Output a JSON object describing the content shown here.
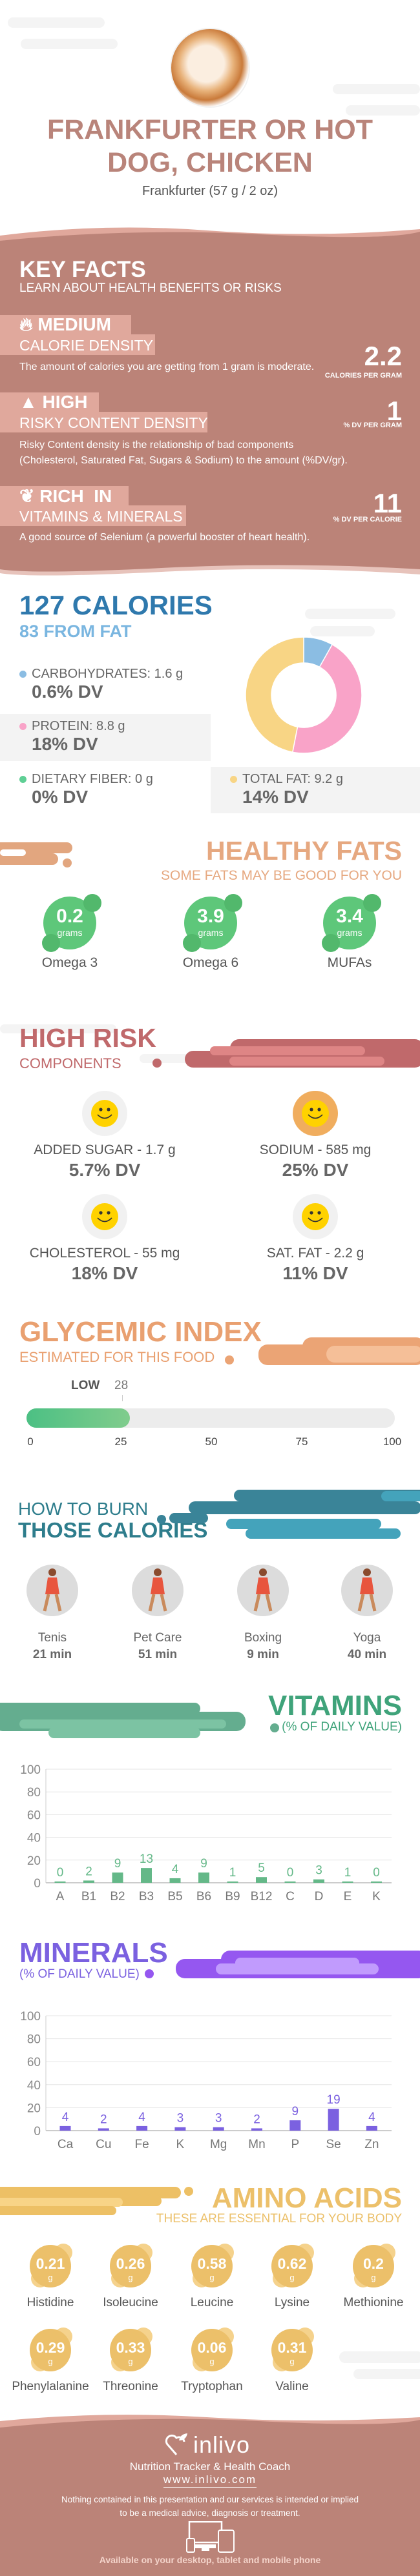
{
  "header": {
    "title_line1": "FRANKFURTER OR HOT",
    "title_line2": "DOG, CHICKEN",
    "serving": "Frankfurter (57 g / 2 oz)"
  },
  "key_facts": {
    "title": "KEY FACTS",
    "subtitle": "LEARN ABOUT HEALTH BENEFITS OR RISKS",
    "items": [
      {
        "level": "MEDIUM",
        "label": "CALORIE DENSITY",
        "value": "2.2",
        "unit": "CALORIES PER GRAM",
        "desc": [
          "The amount of calories you are getting from 1 gram is moderate."
        ],
        "icon": "flame-icon"
      },
      {
        "level": "HIGH",
        "label": "RISKY CONTENT DENSITY",
        "value": "1",
        "unit": "% DV PER GRAM",
        "desc": [
          "Risky Content density is the relationship of bad components",
          "(Cholesterol, Saturated Fat, Sugars & Sodium) to the amount (%DV/gr)."
        ],
        "icon": "warning-icon"
      },
      {
        "level": "RICH  IN",
        "label": "VITAMINS & MINERALS",
        "value": "11",
        "unit": "% DV PER CALORIE",
        "desc": [
          "A good source of Selenium (a powerful booster of heart health)."
        ],
        "icon": "leaf-icon"
      }
    ]
  },
  "calories": {
    "title": "127 CALORIES",
    "from_fat": "83 FROM FAT",
    "nutrients": [
      {
        "label": "CARBOHYDRATES: 1.6 g",
        "dv": "0.6% DV",
        "grams": 1.6,
        "color": "#8bbde3"
      },
      {
        "label": "PROTEIN: 8.8 g",
        "dv": "18% DV",
        "grams": 8.8,
        "color": "#f9a3c8"
      },
      {
        "label": "DIETARY FIBER: 0 g",
        "dv": "0% DV",
        "grams": 0,
        "color": "#5fcf95"
      },
      {
        "label": "TOTAL FAT: 9.2 g",
        "dv": "14% DV",
        "grams": 9.2,
        "color": "#f8d585"
      }
    ]
  },
  "healthy_fats": {
    "title": "HEALTHY FATS",
    "subtitle": "SOME FATS MAY BE GOOD FOR YOU",
    "items": [
      {
        "value": "0.2",
        "unit": "grams",
        "label": "Omega 3"
      },
      {
        "value": "3.9",
        "unit": "grams",
        "label": "Omega 6"
      },
      {
        "value": "3.4",
        "unit": "grams",
        "label": "MUFAs"
      }
    ]
  },
  "high_risk": {
    "title": "HIGH RISK",
    "subtitle": "COMPONENTS",
    "items": [
      {
        "label": "ADDED SUGAR - 1.7 g",
        "dv": "5.7% DV"
      },
      {
        "label": "SODIUM - 585 mg",
        "dv": "25% DV"
      },
      {
        "label": "CHOLESTEROL - 55 mg",
        "dv": "18% DV"
      },
      {
        "label": "SAT. FAT - 2.2 g",
        "dv": "11% DV"
      }
    ]
  },
  "glycemic": {
    "title": "GLYCEMIC INDEX",
    "subtitle": "ESTIMATED FOR THIS FOOD",
    "level": "LOW",
    "value": "28",
    "percent": 28,
    "ticks": [
      "0",
      "25",
      "50",
      "75",
      "100"
    ]
  },
  "burn": {
    "title_line1": "HOW TO BURN",
    "title_line2": "THOSE CALORIES",
    "items": [
      {
        "label": "Tenis",
        "time": "21 min"
      },
      {
        "label": "Pet Care",
        "time": "51 min"
      },
      {
        "label": "Boxing",
        "time": "9 min"
      },
      {
        "label": "Yoga",
        "time": "40 min"
      }
    ]
  },
  "vitamins": {
    "title": "VITAMINS",
    "subtitle": "(% OF DAILY VALUE)"
  },
  "minerals": {
    "title": "MINERALS",
    "subtitle": "(% OF DAILY VALUE)"
  },
  "chart_data": [
    {
      "type": "bar",
      "title": "VITAMINS",
      "ylabel": "% of daily value",
      "ylim": [
        0,
        100
      ],
      "yticks": [
        "0",
        "20",
        "40",
        "60",
        "80",
        "100"
      ],
      "color": "#64b888",
      "categories": [
        "A",
        "B1",
        "B2",
        "B3",
        "B5",
        "B6",
        "B9",
        "B12",
        "C",
        "D",
        "E",
        "K"
      ],
      "values": [
        0,
        2,
        9,
        13,
        4,
        9,
        1,
        5,
        0,
        3,
        1,
        0
      ]
    },
    {
      "type": "bar",
      "title": "MINERALS",
      "ylabel": "% of daily value",
      "ylim": [
        0,
        100
      ],
      "yticks": [
        "0",
        "20",
        "40",
        "60",
        "80",
        "100"
      ],
      "color": "#7b61e0",
      "categories": [
        "Ca",
        "Cu",
        "Fe",
        "K",
        "Mg",
        "Mn",
        "P",
        "Se",
        "Zn"
      ],
      "values": [
        4,
        2,
        4,
        3,
        3,
        2,
        9,
        19,
        4
      ]
    }
  ],
  "amino": {
    "title": "AMINO ACIDS",
    "subtitle": "THESE ARE ESSENTIAL FOR YOUR BODY",
    "items": [
      {
        "value": "0.21",
        "unit": "g",
        "label": "Histidine"
      },
      {
        "value": "0.26",
        "unit": "g",
        "label": "Isoleucine"
      },
      {
        "value": "0.58",
        "unit": "g",
        "label": "Leucine"
      },
      {
        "value": "0.62",
        "unit": "g",
        "label": "Lysine"
      },
      {
        "value": "0.2",
        "unit": "g",
        "label": "Methionine"
      },
      {
        "value": "0.29",
        "unit": "g",
        "label": "Phenylalanine"
      },
      {
        "value": "0.33",
        "unit": "g",
        "label": "Threonine"
      },
      {
        "value": "0.06",
        "unit": "g",
        "label": "Tryptophan"
      },
      {
        "value": "0.31",
        "unit": "g",
        "label": "Valine"
      }
    ]
  },
  "footer": {
    "brand": "inlivo",
    "tagline": "Nutrition Tracker & Health Coach",
    "url": "www.inlivo.com",
    "disclaimer_line1": "Nothing contained in this presentation and our services is intended or implied",
    "disclaimer_line2": "to be a medical advice, diagnosis or treatment.",
    "available": "Available on your desktop, tablet and mobile phone"
  }
}
